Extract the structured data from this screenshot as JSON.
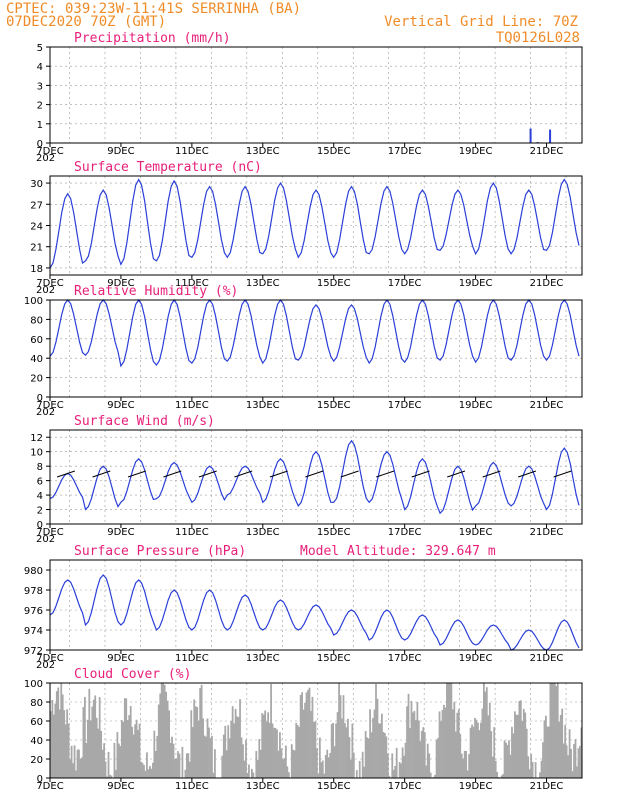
{
  "header": {
    "left_line1": "CPTEC:   039:23W-11:41S   SERRINHA (BA)",
    "left_line2": "07DEC2020 70Z (GMT)",
    "right_line1": "Vertical Grid Line: 70Z",
    "right_line2": "TQ0126L028"
  },
  "colors": {
    "header": "#f08c28",
    "title": "#e8207a",
    "line": "#2a3fd8",
    "cloud": "#a8a8a8",
    "wind": "#000000"
  },
  "x_axis": {
    "days": 15,
    "labels": [
      "7DEC",
      "9DEC",
      "11DEC",
      "13DEC",
      "15DEC",
      "17DEC",
      "19DEC",
      "21DEC"
    ],
    "label_days": [
      0,
      2,
      4,
      6,
      8,
      10,
      12,
      14
    ],
    "fragment": "202"
  },
  "chart_data": [
    {
      "id": "precip",
      "type": "bar",
      "title": "Precipitation (mm/h)",
      "ylim": [
        0,
        5
      ],
      "yticks": [
        0,
        1,
        2,
        3,
        4,
        5
      ],
      "bars": [
        {
          "day": 13.55,
          "value": 0.75
        },
        {
          "day": 13.75,
          "value": 0.05
        },
        {
          "day": 14.1,
          "value": 0.7
        },
        {
          "day": 0.4,
          "value": 0.03
        },
        {
          "day": 8.2,
          "value": 0.03
        },
        {
          "day": 12.5,
          "value": 0.03
        }
      ]
    },
    {
      "id": "temp",
      "type": "line",
      "title": "Surface Temperature (nC)",
      "ylim": [
        17,
        31
      ],
      "yticks": [
        18,
        21,
        24,
        27,
        30
      ],
      "daily": [
        [
          18,
          28.5
        ],
        [
          19,
          29
        ],
        [
          18.5,
          30.5
        ],
        [
          19,
          30.3
        ],
        [
          19.5,
          29.5
        ],
        [
          19.5,
          29.5
        ],
        [
          20,
          30
        ],
        [
          19.5,
          29
        ],
        [
          19.5,
          29.5
        ],
        [
          20,
          29.5
        ],
        [
          20,
          29
        ],
        [
          20.5,
          29
        ],
        [
          20,
          30
        ],
        [
          20,
          29
        ],
        [
          20.5,
          30.5
        ]
      ]
    },
    {
      "id": "rh",
      "type": "line",
      "title": "Relative Humidity (%)",
      "ylim": [
        0,
        100
      ],
      "yticks": [
        0,
        20,
        40,
        60,
        80,
        100
      ],
      "daily": [
        [
          100,
          42
        ],
        [
          100,
          43
        ],
        [
          100,
          32
        ],
        [
          100,
          33
        ],
        [
          100,
          35
        ],
        [
          100,
          37
        ],
        [
          100,
          35
        ],
        [
          95,
          38
        ],
        [
          95,
          37
        ],
        [
          100,
          35
        ],
        [
          100,
          36
        ],
        [
          100,
          38
        ],
        [
          100,
          36
        ],
        [
          100,
          38
        ],
        [
          100,
          38
        ]
      ]
    },
    {
      "id": "wind",
      "type": "line",
      "title": "Surface Wind (m/s)",
      "ylim": [
        0,
        13
      ],
      "yticks": [
        0,
        2,
        4,
        6,
        8,
        10,
        12
      ],
      "daily": [
        [
          3.5,
          7
        ],
        [
          2,
          8
        ],
        [
          3,
          9
        ],
        [
          3.5,
          8.5
        ],
        [
          3,
          8
        ],
        [
          4,
          8
        ],
        [
          3,
          9
        ],
        [
          2.5,
          10
        ],
        [
          3,
          11.5
        ],
        [
          3,
          10
        ],
        [
          2,
          9
        ],
        [
          1.5,
          8
        ],
        [
          2.5,
          8.5
        ],
        [
          2.5,
          8
        ],
        [
          2,
          10.5
        ]
      ]
    },
    {
      "id": "press",
      "type": "line",
      "title": "Surface Pressure (hPa)",
      "subtitle": "Model Altitude: 329.647  m",
      "ylim": [
        972,
        981
      ],
      "yticks": [
        972,
        974,
        976,
        978,
        980
      ],
      "daily": [
        [
          979,
          975.5
        ],
        [
          979.5,
          974.5
        ],
        [
          979,
          974.5
        ],
        [
          978,
          974
        ],
        [
          978,
          974
        ],
        [
          977.5,
          974
        ],
        [
          977,
          974
        ],
        [
          976.5,
          974
        ],
        [
          976,
          973.5
        ],
        [
          976,
          973
        ],
        [
          975.5,
          973
        ],
        [
          975,
          972.5
        ],
        [
          974.5,
          972.5
        ],
        [
          974,
          972
        ],
        [
          975,
          972
        ]
      ]
    },
    {
      "id": "cloud",
      "type": "bar",
      "title": "Cloud Cover (%)",
      "ylim": [
        0,
        100
      ],
      "yticks": [
        0,
        20,
        40,
        60,
        80,
        100
      ]
    }
  ]
}
